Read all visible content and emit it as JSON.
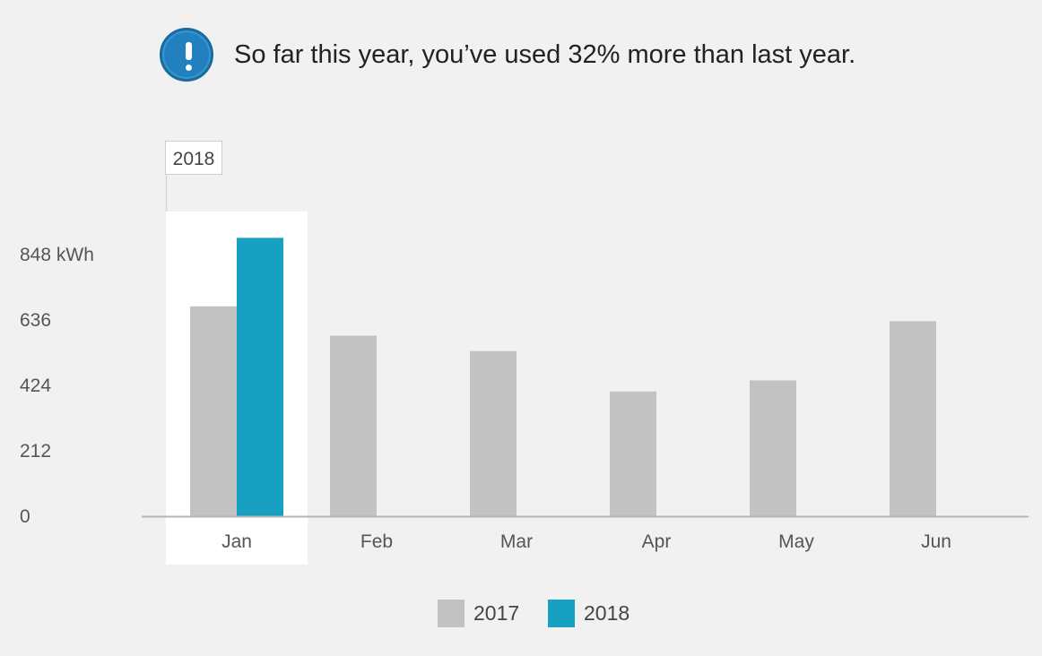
{
  "banner": {
    "icon": "exclamation-icon",
    "text": "So far this year, you’ve used 32% more than last year."
  },
  "colors": {
    "background": "#f1f1f1",
    "series_2017": "#c2c2c2",
    "series_2018": "#18a0c2",
    "alert_icon": "#2180bd"
  },
  "chart_data": {
    "type": "bar",
    "categories": [
      "Jan",
      "Feb",
      "Mar",
      "Apr",
      "May",
      "Jun"
    ],
    "series": [
      {
        "name": "2017",
        "values": [
          680,
          585,
          535,
          404,
          440,
          632
        ]
      },
      {
        "name": "2018",
        "values": [
          902,
          null,
          null,
          null,
          null,
          null
        ]
      }
    ],
    "ylim": [
      0,
      1060
    ],
    "yticks": [
      0,
      212,
      424,
      636,
      848
    ],
    "ytick_labels": [
      "0",
      "212",
      "424",
      "636",
      "848 kWh"
    ],
    "legend": {
      "position": "bottom-center",
      "entries": [
        "2017",
        "2018"
      ]
    },
    "highlight": {
      "category": "Jan",
      "label": "2018"
    },
    "grid": false
  }
}
